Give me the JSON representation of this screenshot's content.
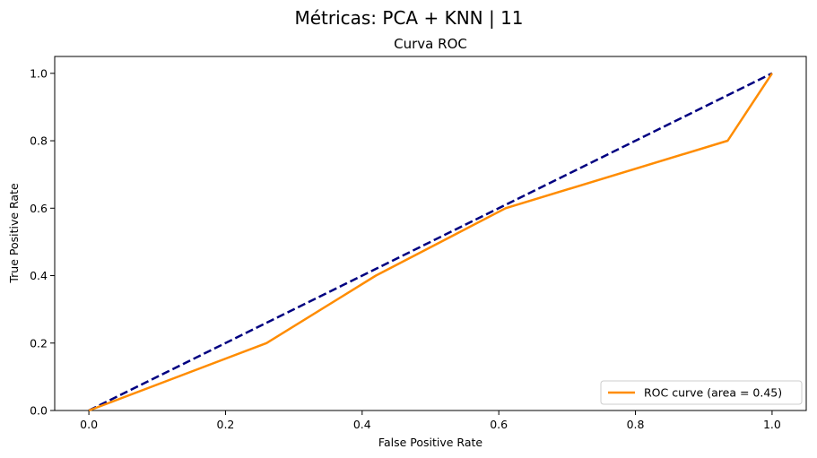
{
  "figure": {
    "suptitle": "Métricas: PCA + KNN | 11"
  },
  "chart_data": {
    "type": "line",
    "title": "Curva ROC",
    "xlabel": "False Positive Rate",
    "ylabel": "True Positive Rate",
    "xlim": [
      -0.05,
      1.05
    ],
    "ylim": [
      0.0,
      1.05
    ],
    "x_ticks": [
      "0.0",
      "0.2",
      "0.4",
      "0.6",
      "0.8",
      "1.0"
    ],
    "y_ticks": [
      "0.0",
      "0.2",
      "0.4",
      "0.6",
      "0.8",
      "1.0"
    ],
    "grid": false,
    "legend_position": "lower right",
    "series": [
      {
        "name": "ROC curve (area = 0.45)",
        "color": "#ff8c00",
        "style": "solid",
        "x": [
          0.0,
          0.26,
          0.42,
          0.61,
          0.935,
          1.0
        ],
        "y": [
          0.0,
          0.2,
          0.4,
          0.6,
          0.8,
          1.0
        ]
      },
      {
        "color": "#000080",
        "style": "dashed",
        "x": [
          0.0,
          1.0
        ],
        "y": [
          0.0,
          1.0
        ]
      }
    ]
  }
}
